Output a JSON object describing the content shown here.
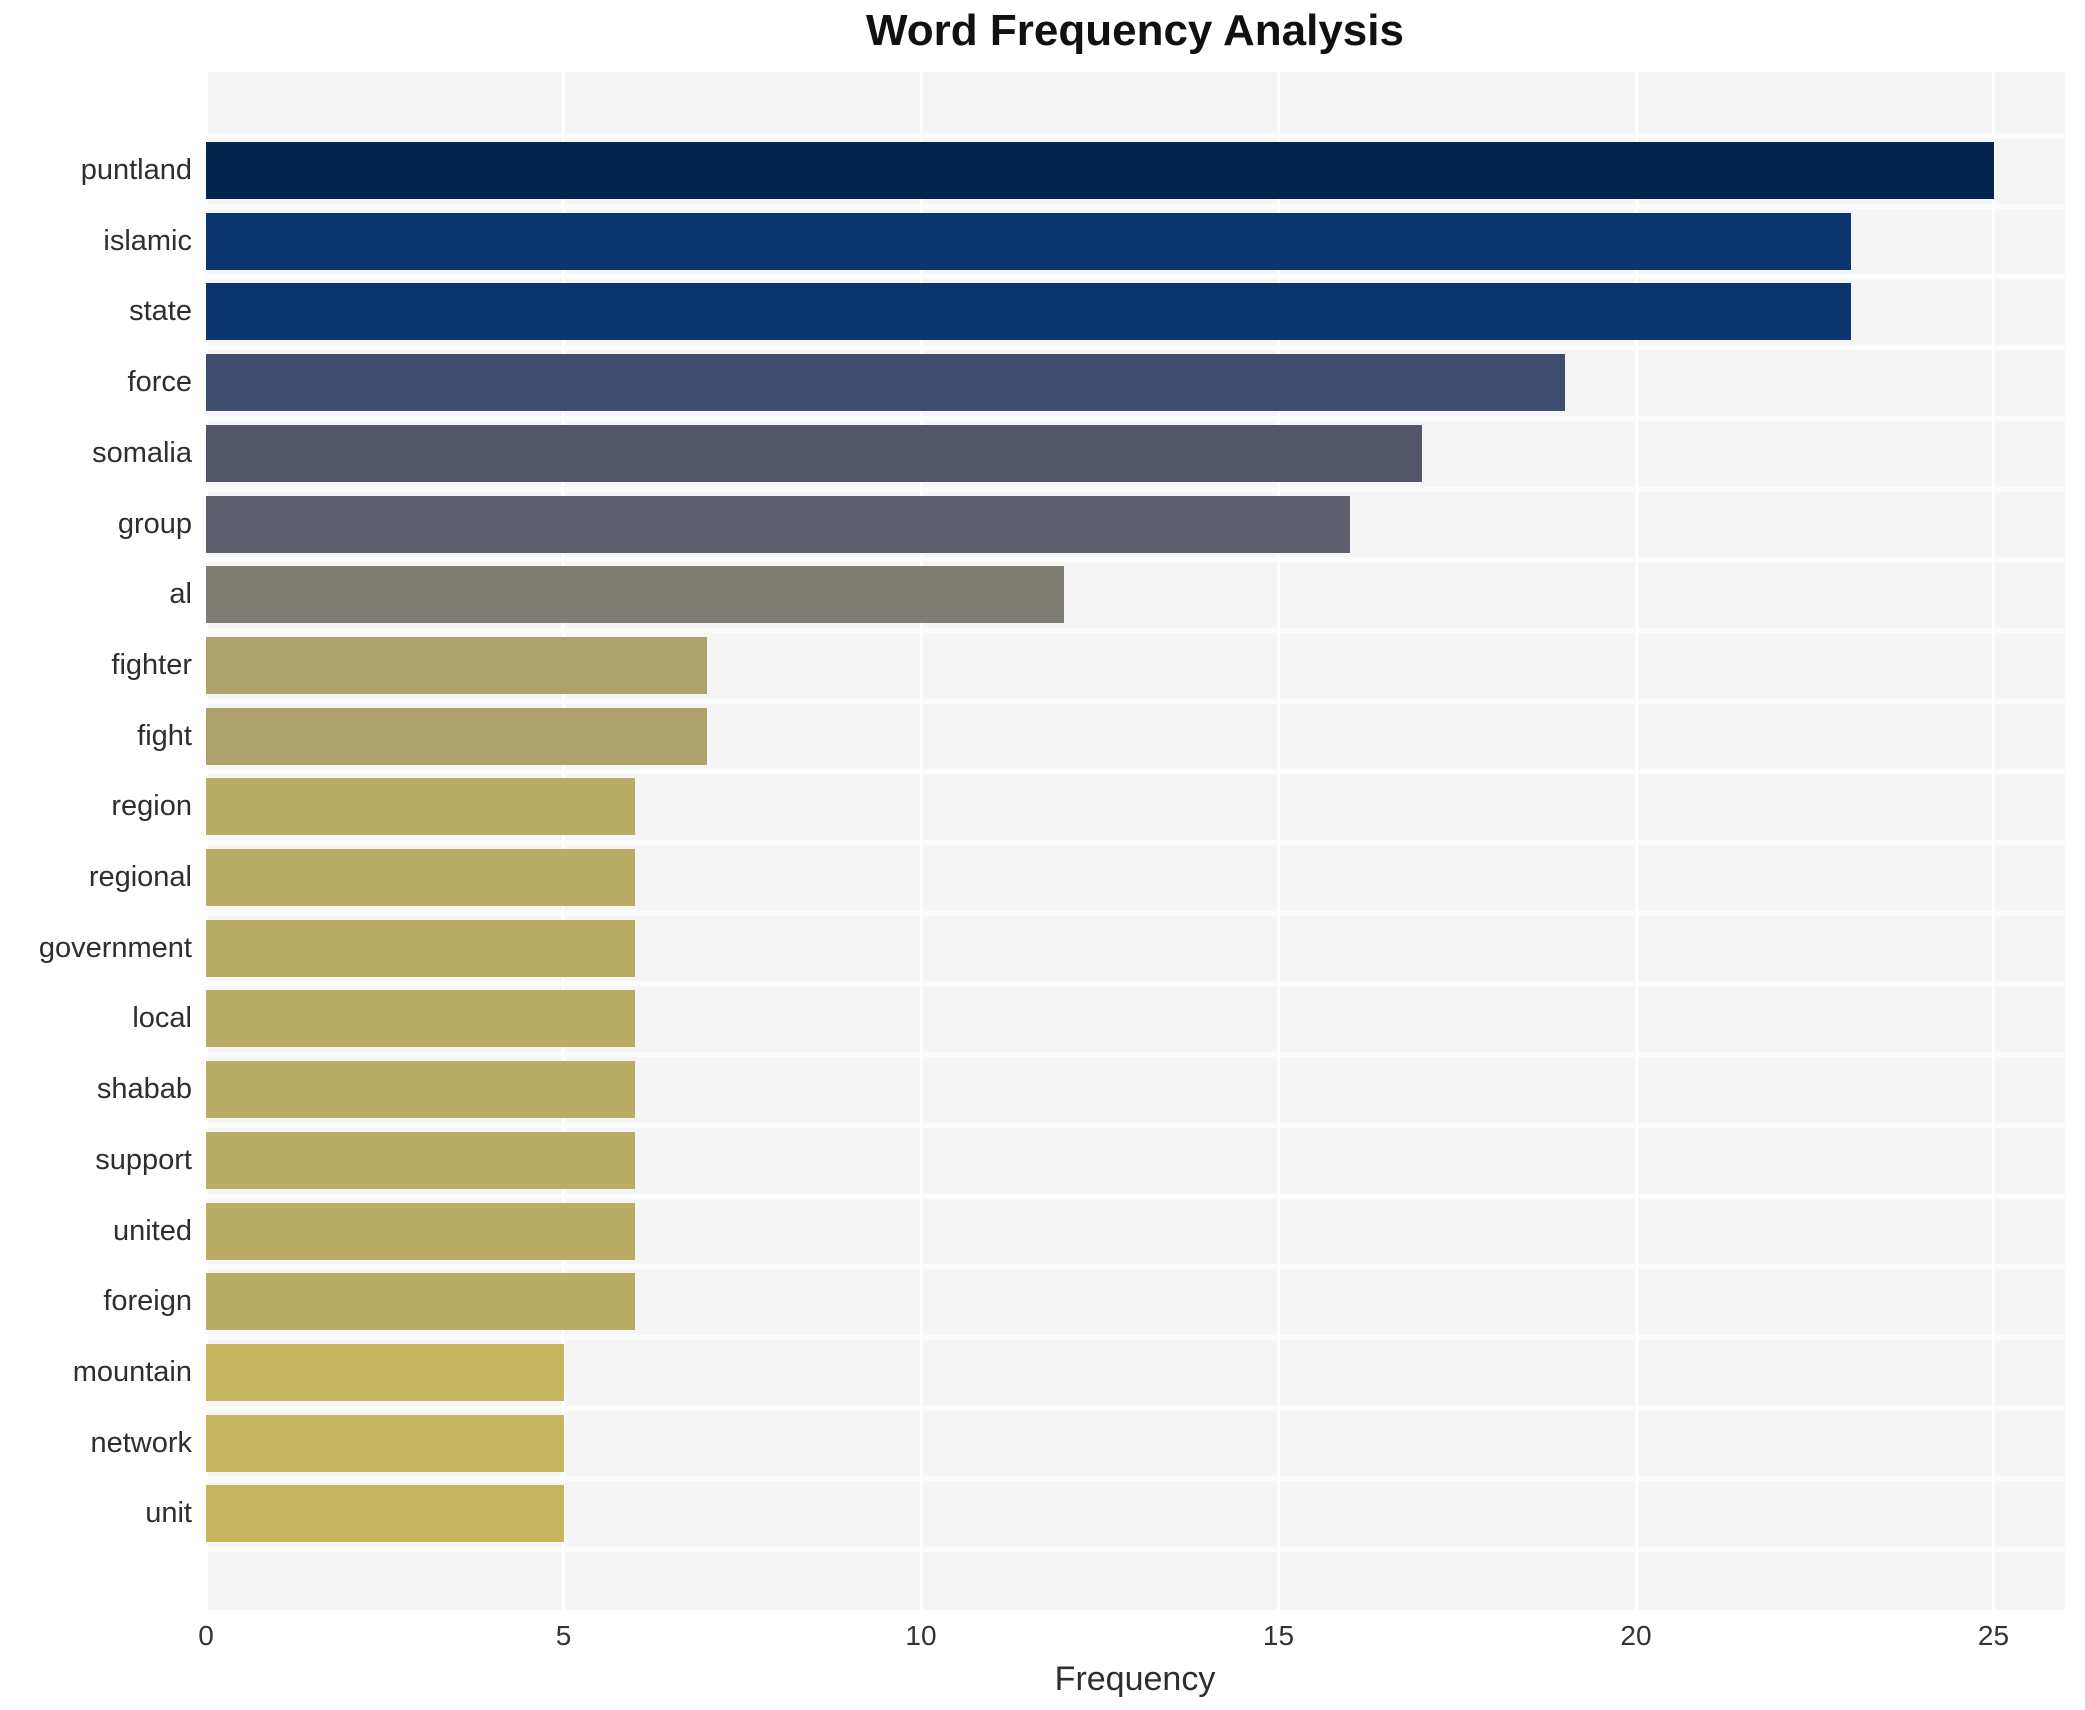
{
  "title": "Word Frequency Analysis",
  "chart_data": {
    "type": "bar",
    "orientation": "horizontal",
    "title": "Word Frequency Analysis",
    "xlabel": "Frequency",
    "ylabel": "",
    "xlim": [
      0,
      26
    ],
    "x_ticks": [
      0,
      5,
      10,
      15,
      20,
      25
    ],
    "grid": true,
    "legend": "none",
    "plot_bg_color": "#f5f5f6",
    "grid_color": "#ffffff",
    "categories": [
      "puntland",
      "islamic",
      "state",
      "force",
      "somalia",
      "group",
      "al",
      "fighter",
      "fight",
      "region",
      "regional",
      "government",
      "local",
      "shabab",
      "support",
      "united",
      "foreign",
      "mountain",
      "network",
      "unit"
    ],
    "values": [
      25,
      23,
      23,
      19,
      17,
      16,
      12,
      7,
      7,
      6,
      6,
      6,
      6,
      6,
      6,
      6,
      6,
      5,
      5,
      5
    ],
    "bar_colors": [
      "#04234d",
      "#0c356f",
      "#0c356f",
      "#414d6f",
      "#535669",
      "#5d606c",
      "#807d75",
      "#ada26b",
      "#ada26b",
      "#b9ac65",
      "#b9ac65",
      "#b9ac65",
      "#b9ac65",
      "#b9ac65",
      "#b9ac65",
      "#b9ac65",
      "#b9ac65",
      "#c8b55f",
      "#c8b55f",
      "#c8b55f"
    ]
  }
}
